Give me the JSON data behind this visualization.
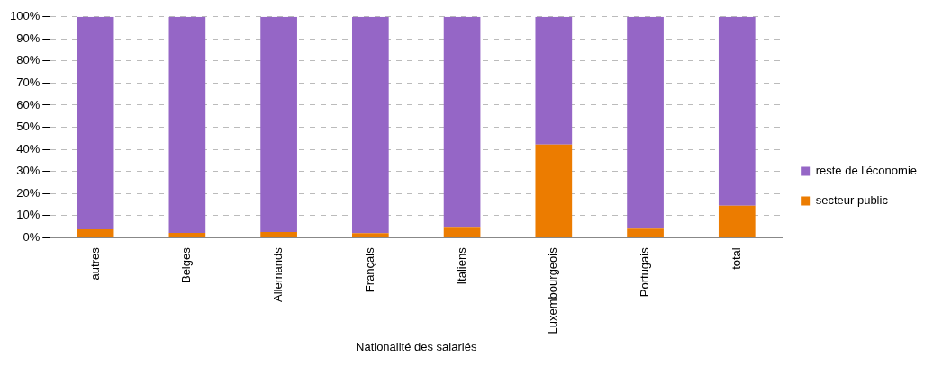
{
  "chart_data": {
    "type": "bar",
    "stacked": true,
    "xlabel": "Nationalité des salariés",
    "categories": [
      "autres",
      "Belges",
      "Allemands",
      "Français",
      "Italiens",
      "Luxembourgeois",
      "Portugais",
      "total"
    ],
    "series": [
      {
        "name": "secteur public",
        "color": "#ec7c00",
        "values": [
          3.8,
          2.2,
          2.6,
          2.0,
          4.9,
          42.2,
          4.1,
          14.5
        ]
      },
      {
        "name": "reste de l'économie",
        "color": "#9566c6",
        "values": [
          96.2,
          97.8,
          97.4,
          98.0,
          95.1,
          57.8,
          95.9,
          85.5
        ]
      }
    ],
    "ylim": [
      0,
      100
    ],
    "yticks": [
      {
        "value": 0,
        "label": "0%"
      },
      {
        "value": 10,
        "label": "10%"
      },
      {
        "value": 20,
        "label": "20%"
      },
      {
        "value": 30,
        "label": "30%"
      },
      {
        "value": 40,
        "label": "40%"
      },
      {
        "value": 50,
        "label": "50%"
      },
      {
        "value": 60,
        "label": "60%"
      },
      {
        "value": 70,
        "label": "70%"
      },
      {
        "value": 80,
        "label": "80%"
      },
      {
        "value": 90,
        "label": "90%"
      },
      {
        "value": 100,
        "label": "100%"
      }
    ],
    "grid": "y",
    "legend": "right"
  }
}
